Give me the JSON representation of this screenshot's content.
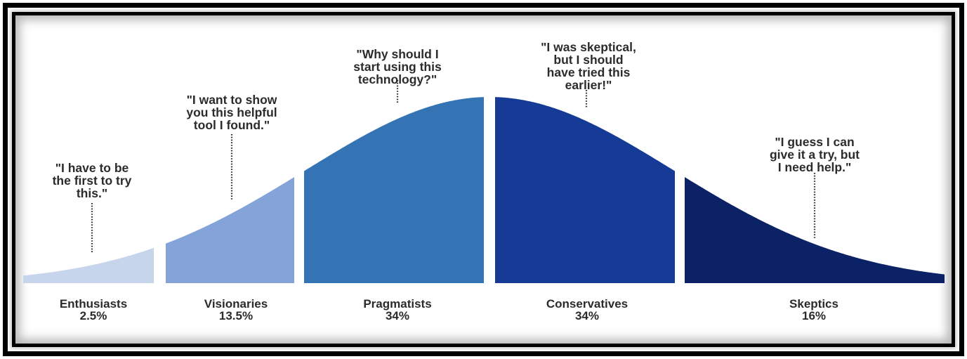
{
  "segments": [
    {
      "name": "Enthusiasts",
      "share": "2.5%",
      "color": "#c6d4ec",
      "quote": [
        "\"I have to be",
        "the first to try",
        "this.\""
      ]
    },
    {
      "name": "Visionaries",
      "share": "13.5%",
      "color": "#84a3d8",
      "quote": [
        "\"I want to show",
        "you this helpful",
        "tool I found.\""
      ]
    },
    {
      "name": "Pragmatists",
      "share": "34%",
      "color": "#3474b4",
      "quote": [
        "\"Why should I",
        "start using this",
        "technology?\""
      ]
    },
    {
      "name": "Conservatives",
      "share": "34%",
      "color": "#153b97",
      "quote": [
        "\"I was skeptical,",
        "but I should",
        "have tried this",
        "earlier!\""
      ]
    },
    {
      "name": "Skeptics",
      "share": "16%",
      "color": "#0c2266",
      "quote": [
        "\"I guess I can",
        "give it a try, but",
        "I need help.\""
      ]
    }
  ]
}
